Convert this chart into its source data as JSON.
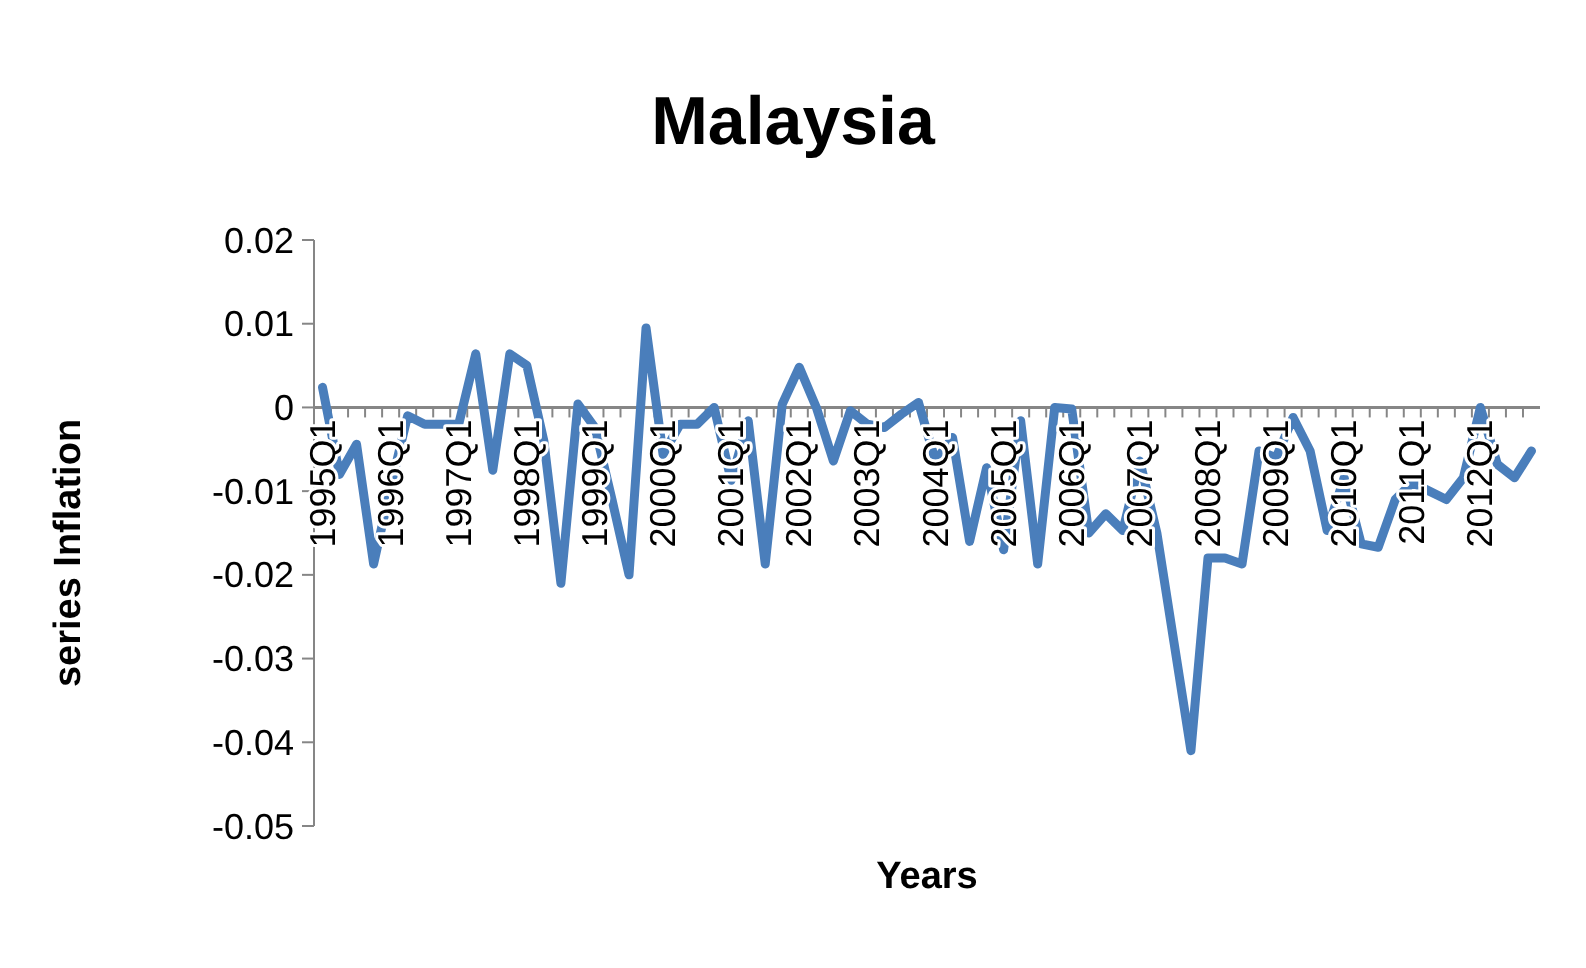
{
  "chart_data": {
    "type": "line",
    "title": "Malaysia",
    "xlabel": "Years",
    "ylabel": "series Inflation",
    "categories": [
      "1995Q1",
      null,
      null,
      null,
      "1996Q1",
      null,
      null,
      null,
      "1997Q1",
      null,
      null,
      null,
      "1998Q1",
      null,
      null,
      null,
      "1999Q1",
      null,
      null,
      null,
      "2000Q1",
      null,
      null,
      null,
      "2001Q1",
      null,
      null,
      null,
      "2002Q1",
      null,
      null,
      null,
      "2003Q1",
      null,
      null,
      null,
      "2004Q1",
      null,
      null,
      null,
      "2005Q1",
      null,
      null,
      null,
      "2006Q1",
      null,
      null,
      null,
      "2007Q1",
      null,
      null,
      null,
      "2008Q1",
      null,
      null,
      null,
      "2009Q1",
      null,
      null,
      null,
      "2010Q1",
      null,
      null,
      null,
      "2011Q1",
      null,
      null,
      null,
      "2012Q1",
      null,
      null,
      null
    ],
    "series": [
      {
        "color": "#4a7ebb",
        "values": [
          0.0024,
          -0.008,
          -0.0044,
          -0.0187,
          -0.0095,
          -0.001,
          -0.002,
          -0.002,
          -0.002,
          0.0064,
          -0.0075,
          0.0064,
          0.005,
          -0.004,
          -0.021,
          0.0004,
          -0.0024,
          -0.011,
          -0.02,
          0.0095,
          -0.0056,
          -0.002,
          -0.002,
          0,
          -0.0087,
          -0.0016,
          -0.0187,
          0.0004,
          0.0048,
          0,
          -0.0064,
          -0.0004,
          -0.002,
          -0.0024,
          -0.0008,
          0.0006,
          -0.0064,
          -0.0036,
          -0.016,
          -0.0072,
          -0.017,
          -0.0016,
          -0.0187,
          0,
          -0.0002,
          -0.015,
          -0.0127,
          -0.0147,
          -0.0064,
          -0.015,
          -0.028,
          -0.041,
          -0.018,
          -0.018,
          -0.0187,
          -0.0052,
          -0.006,
          -0.0012,
          -0.0052,
          -0.0147,
          -0.0084,
          -0.0163,
          -0.0167,
          -0.011,
          -0.009,
          -0.01,
          -0.011,
          -0.0084,
          0,
          -0.0068,
          -0.0084,
          -0.0052
        ]
      }
    ],
    "ylim": [
      -0.05,
      0.02
    ],
    "yticks": [
      {
        "value": 0.02,
        "label": "0.02"
      },
      {
        "value": 0.01,
        "label": "0.01"
      },
      0,
      {
        "value": -0.01,
        "label": "-0.01"
      },
      {
        "value": -0.02,
        "label": "-0.02"
      },
      {
        "value": -0.03,
        "label": "-0.03"
      },
      {
        "value": -0.04,
        "label": "-0.04"
      },
      {
        "value": -0.05,
        "label": "-0.05"
      }
    ],
    "grid": false,
    "marker": "none",
    "line_style": "solid"
  }
}
